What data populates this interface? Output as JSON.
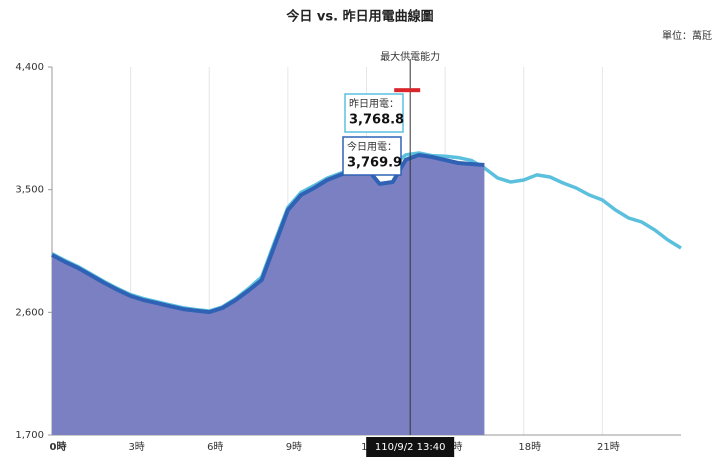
{
  "chart_data": {
    "type": "line",
    "title": "今日 vs. 昨日用電曲線圖",
    "unit": "單位：萬瓩",
    "x": [
      0,
      0.5,
      1,
      1.5,
      2,
      2.5,
      3,
      3.5,
      4,
      4.5,
      5,
      5.5,
      6,
      6.5,
      7,
      7.5,
      8,
      8.5,
      9,
      9.5,
      10,
      10.5,
      11,
      11.5,
      12,
      12.5,
      13,
      13.5,
      14,
      14.5,
      15,
      15.5,
      16,
      16.5,
      17,
      17.5,
      18,
      18.5,
      19,
      19.5,
      20,
      20.5,
      21,
      21.5,
      22,
      22.5,
      23,
      23.5,
      24
    ],
    "series": [
      {
        "name": "昨日用電：",
        "color": "#5bc0de",
        "values": [
          3030,
          2980,
          2935,
          2880,
          2825,
          2775,
          2730,
          2700,
          2678,
          2655,
          2634,
          2620,
          2610,
          2640,
          2700,
          2775,
          2860,
          3120,
          3370,
          3480,
          3530,
          3585,
          3620,
          3650,
          3665,
          3668,
          3680,
          3755,
          3769,
          3750,
          3745,
          3735,
          3715,
          3659,
          3586,
          3556,
          3571,
          3608,
          3593,
          3549,
          3512,
          3461,
          3424,
          3351,
          3292,
          3263,
          3204,
          3131,
          3072
        ]
      },
      {
        "name": "今日用電：",
        "color": "#2f62b5",
        "fill": "#7b80c2",
        "values": [
          3021,
          2970,
          2925,
          2870,
          2815,
          2765,
          2720,
          2690,
          2668,
          2645,
          2624,
          2612,
          2602,
          2632,
          2690,
          2760,
          2837,
          3094,
          3351,
          3461,
          3512,
          3571,
          3608,
          3644,
          3659,
          3542,
          3556,
          3720,
          3754,
          3740,
          3718,
          3696,
          3688,
          3681,
          null,
          null,
          null,
          null,
          null,
          null,
          null,
          null,
          null,
          null,
          null,
          null,
          null,
          null,
          null
        ]
      }
    ],
    "xlim": [
      0,
      24
    ],
    "xticks": [
      {
        "value": 0,
        "label": "0時"
      },
      {
        "value": 3,
        "label": "3時"
      },
      {
        "value": 6,
        "label": "6時"
      },
      {
        "value": 9,
        "label": "9時"
      },
      {
        "value": 12,
        "label": "12時"
      },
      {
        "value": 15,
        "label": "15時"
      },
      {
        "value": 18,
        "label": "18時"
      },
      {
        "value": 21,
        "label": "21時"
      }
    ],
    "ylim": [
      1700,
      4400
    ],
    "yticks": [
      {
        "value": 1700,
        "label": "1,700"
      },
      {
        "value": 2600,
        "label": "2,600"
      },
      {
        "value": 3500,
        "label": "3,500"
      },
      {
        "value": 4400,
        "label": "4,400"
      }
    ],
    "grid": true,
    "max_supply": {
      "label": "最大供電能力",
      "x": 13.667,
      "value": 4230
    },
    "tooltip": {
      "time": "110/9/2 13:40",
      "items": [
        {
          "label": "昨日用電：",
          "value_label": "3,768.8"
        },
        {
          "label": "今日用電：",
          "value_label": "3,769.9"
        }
      ]
    }
  }
}
